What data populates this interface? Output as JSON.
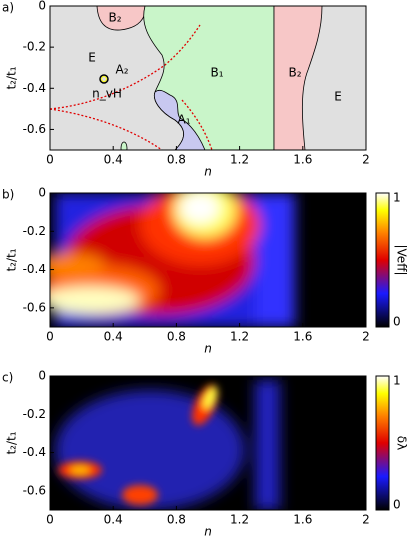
{
  "chart_data": [
    {
      "type": "phase-diagram",
      "label": "a)",
      "xlabel": "n",
      "ylabel": "t₂/t₁",
      "xlim": [
        0,
        2
      ],
      "xticks": [
        0,
        0.4,
        0.8,
        1.2,
        1.6,
        2
      ],
      "ylim": [
        -0.7,
        0
      ],
      "yticks": [
        0,
        -0.2,
        -0.4,
        -0.6
      ],
      "annotations": [
        "E",
        "B₂",
        "B₁",
        "B₂",
        "E",
        "A₁",
        "A₂",
        "n_vH"
      ]
    },
    {
      "type": "heatmap",
      "label": "b)",
      "xlabel": "n",
      "ylabel": "t₂/t₁",
      "xlim": [
        0,
        2
      ],
      "xticks": [
        0,
        0.4,
        0.8,
        1.2,
        1.6,
        2
      ],
      "ylim": [
        -0.7,
        0
      ],
      "yticks": [
        0,
        -0.2,
        -0.4,
        -0.6
      ],
      "colorbar": {
        "label": "|Veff|",
        "lim": [
          0,
          1
        ],
        "ticks": [
          0,
          1
        ]
      }
    },
    {
      "type": "heatmap",
      "label": "c)",
      "xlabel": "n",
      "ylabel": "t₂/t₁",
      "xlim": [
        0,
        2
      ],
      "xticks": [
        0,
        0.4,
        0.8,
        1.2,
        1.6,
        2
      ],
      "ylim": [
        -0.7,
        0
      ],
      "yticks": [
        0,
        -0.2,
        -0.4,
        -0.6
      ],
      "colorbar": {
        "label": "δλ",
        "lim": [
          0,
          1
        ],
        "ticks": [
          0,
          1
        ]
      }
    }
  ]
}
